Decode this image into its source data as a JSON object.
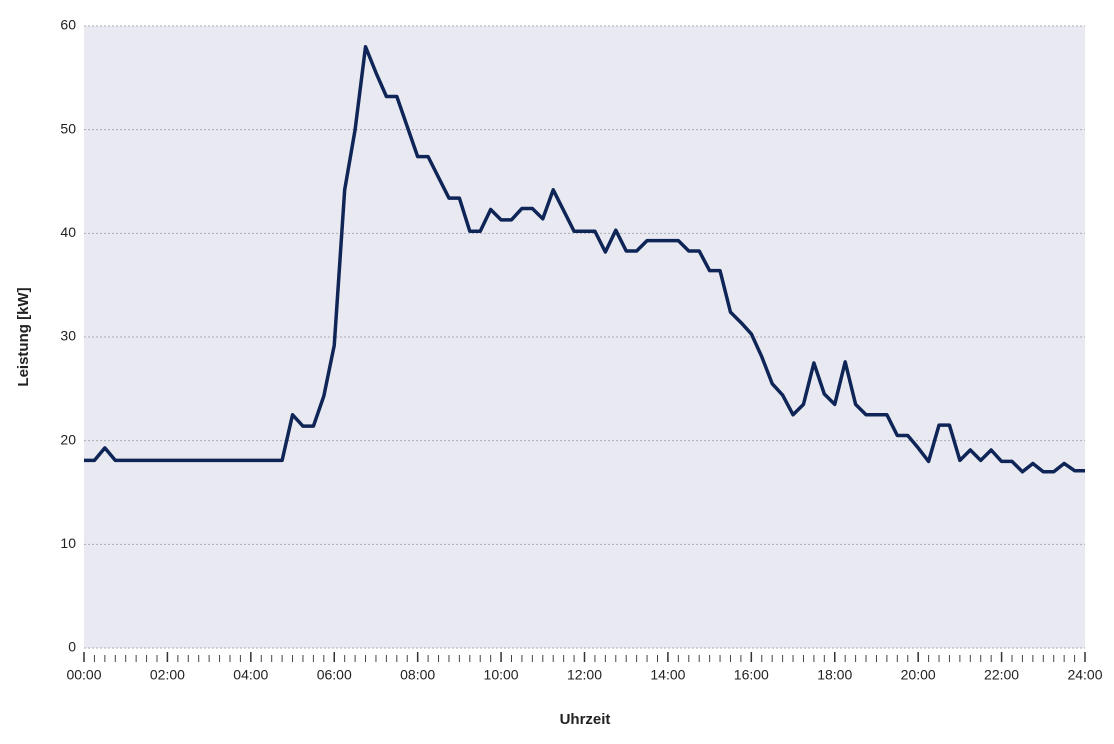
{
  "chart_data": {
    "type": "line",
    "xlabel": "Uhrzeit",
    "ylabel": "Leistung [kW]",
    "x": [
      0,
      0.25,
      0.5,
      0.75,
      1,
      1.25,
      1.5,
      1.75,
      2,
      2.25,
      2.5,
      2.75,
      3,
      3.25,
      3.5,
      3.75,
      4,
      4.25,
      4.5,
      4.75,
      5,
      5.25,
      5.5,
      5.75,
      6,
      6.25,
      6.5,
      6.75,
      7,
      7.25,
      7.5,
      7.75,
      8,
      8.25,
      8.5,
      8.75,
      9,
      9.25,
      9.5,
      9.75,
      10,
      10.25,
      10.5,
      10.75,
      11,
      11.25,
      11.5,
      11.75,
      12,
      12.25,
      12.5,
      12.75,
      13,
      13.25,
      13.5,
      13.75,
      14,
      14.25,
      14.5,
      14.75,
      15,
      15.25,
      15.5,
      15.75,
      16,
      16.25,
      16.5,
      16.75,
      17,
      17.25,
      17.5,
      17.75,
      18,
      18.25,
      18.5,
      18.75,
      19,
      19.25,
      19.5,
      19.75,
      20,
      20.25,
      20.5,
      20.75,
      21,
      21.25,
      21.5,
      21.75,
      22,
      22.25,
      22.5,
      22.75,
      23,
      23.25,
      23.5,
      23.75,
      24
    ],
    "series": [
      {
        "name": "Leistung",
        "color": "#0f2557",
        "values": [
          18.1,
          18.1,
          19.3,
          18.1,
          18.1,
          18.1,
          18.1,
          18.1,
          18.1,
          18.1,
          18.1,
          18.1,
          18.1,
          18.1,
          18.1,
          18.1,
          18.1,
          18.1,
          18.1,
          18.1,
          22.5,
          21.4,
          21.4,
          24.3,
          29.2,
          44.2,
          50,
          58,
          55.5,
          53.2,
          53.2,
          50.3,
          47.4,
          47.4,
          45.4,
          43.4,
          43.4,
          40.2,
          40.2,
          42.3,
          41.3,
          41.3,
          42.4,
          42.4,
          41.4,
          44.2,
          42.2,
          40.2,
          40.2,
          40.2,
          38.2,
          40.3,
          38.3,
          38.3,
          39.3,
          39.3,
          39.3,
          39.3,
          38.3,
          38.3,
          36.4,
          36.4,
          32.4,
          31.4,
          30.3,
          28.1,
          25.5,
          24.4,
          22.5,
          23.5,
          27.5,
          24.5,
          23.5,
          27.6,
          23.5,
          22.5,
          22.5,
          22.5,
          20.5,
          20.5,
          19.3,
          18,
          21.5,
          21.5,
          18.1,
          19.1,
          18.1,
          19.1,
          18,
          18,
          17,
          17.8,
          17,
          17,
          17.8,
          17.1,
          17.1
        ]
      }
    ],
    "xlim": [
      0,
      24
    ],
    "xticks": [
      {
        "value": 0,
        "label": "00:00"
      },
      {
        "value": 2,
        "label": "02:00"
      },
      {
        "value": 4,
        "label": "04:00"
      },
      {
        "value": 6,
        "label": "06:00"
      },
      {
        "value": 8,
        "label": "08:00"
      },
      {
        "value": 10,
        "label": "10:00"
      },
      {
        "value": 12,
        "label": "12:00"
      },
      {
        "value": 14,
        "label": "14:00"
      },
      {
        "value": 16,
        "label": "16:00"
      },
      {
        "value": 18,
        "label": "18:00"
      },
      {
        "value": 20,
        "label": "20:00"
      },
      {
        "value": 22,
        "label": "22:00"
      },
      {
        "value": 24,
        "label": "24:00"
      }
    ],
    "xminor_step": 0.25,
    "ylim": [
      0,
      60
    ],
    "yticks": [
      0,
      10,
      20,
      30,
      40,
      50,
      60
    ],
    "grid": true
  }
}
